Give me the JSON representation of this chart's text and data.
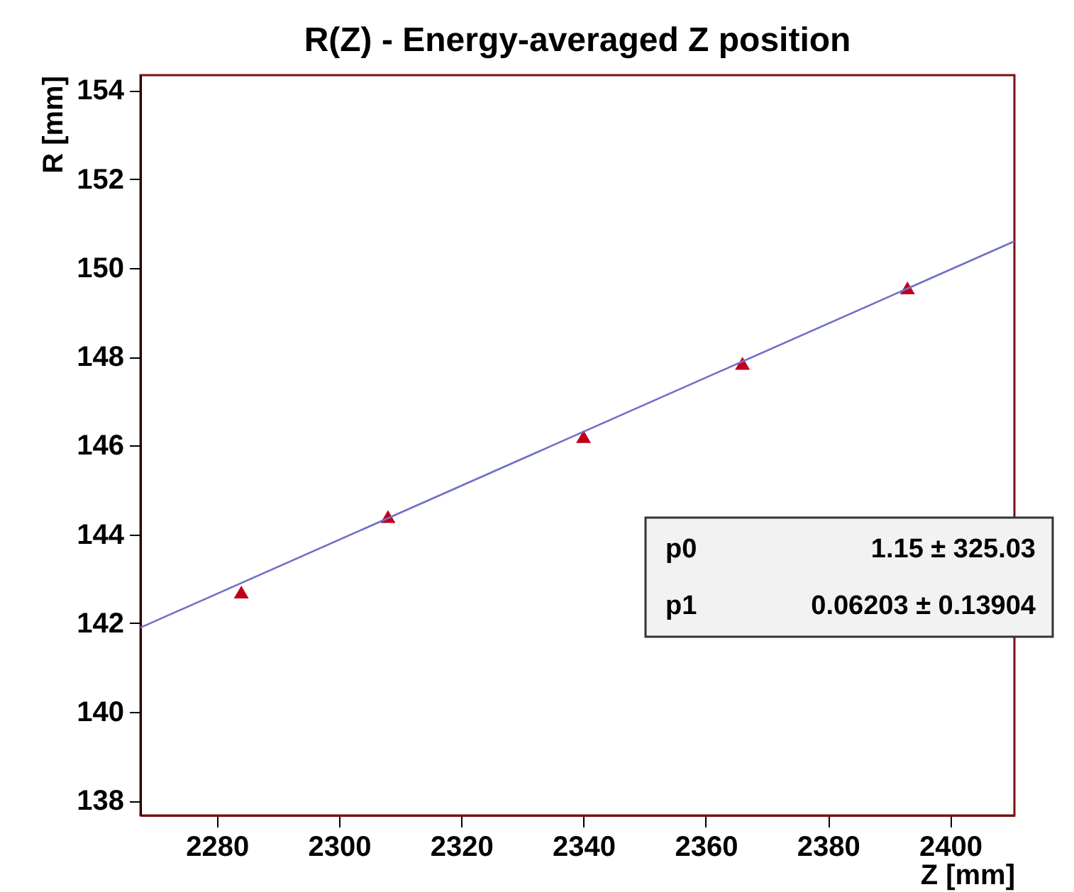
{
  "chart_data": {
    "type": "scatter",
    "title": "R(Z) - Energy-averaged Z position",
    "xlabel": "Z [mm]",
    "ylabel": "R [mm]",
    "x": [
      2284,
      2308,
      2340,
      2366,
      2393
    ],
    "series": [
      {
        "type": "scatter",
        "color": "#c0001a",
        "marker": "triangle",
        "values": [
          142.7,
          144.4,
          146.2,
          147.85,
          149.55
        ]
      },
      {
        "type": "line",
        "color": "#7070c8",
        "x": [
          2267.5,
          2410.5
        ],
        "values": [
          141.9,
          150.6
        ],
        "line_style": "solid",
        "marker": "none"
      }
    ],
    "xlim": [
      2267.5,
      2410.5
    ],
    "xticks": [
      2280,
      2300,
      2320,
      2340,
      2360,
      2380,
      2400
    ],
    "ylim": [
      137.67,
      154.34
    ],
    "yticks": [
      138,
      140,
      142,
      144,
      146,
      148,
      150,
      152,
      154
    ],
    "grid": false,
    "annotations": [
      "p0",
      "1.15 ± 325.03",
      "p1",
      "0.06203 ± 0.13904"
    ]
  }
}
